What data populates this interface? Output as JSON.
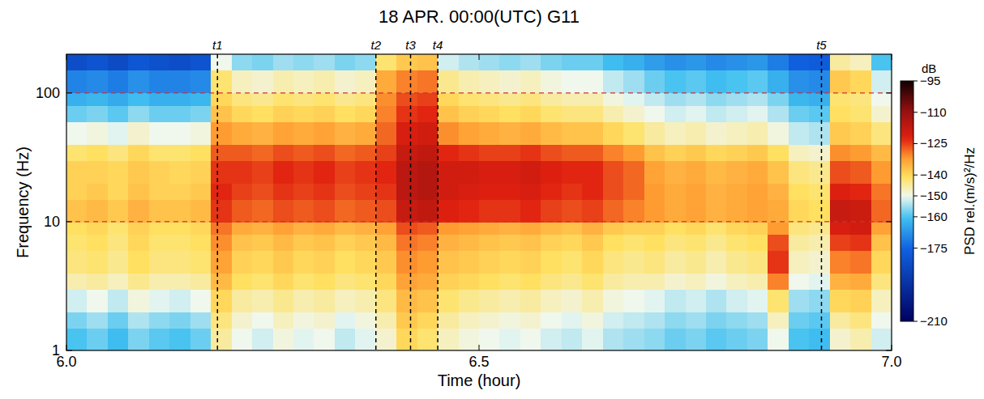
{
  "chart_data": {
    "type": "heatmap",
    "title": "18 APR. 00:00(UTC) G11",
    "x_label": "Time (hour)",
    "y_label": "Frequency (Hz)",
    "xlim": [
      6.0,
      7.0
    ],
    "xticks": [
      {
        "value": 6.0,
        "label": "6.0"
      },
      {
        "value": 6.5,
        "label": "6.5"
      },
      {
        "value": 7.0,
        "label": "7.0"
      }
    ],
    "ylim": [
      1,
      200
    ],
    "yticks": [
      1,
      10,
      100
    ],
    "log": "y",
    "grid": false,
    "markers": [
      {
        "label": "t1",
        "x": 6.183
      },
      {
        "label": "t2",
        "x": 6.375
      },
      {
        "label": "t3",
        "x": 6.417
      },
      {
        "label": "t4",
        "x": 6.45
      },
      {
        "label": "t5",
        "x": 6.915
      }
    ],
    "reference_lines": [
      10,
      100
    ],
    "colorbar": {
      "unit": "dB",
      "label": "PSD rel.(m/s)²/Hz",
      "range": [
        -210,
        -95
      ],
      "ticks": [
        -95,
        -110,
        -125,
        -140,
        -150,
        -160,
        -175,
        -210
      ]
    },
    "cells": {
      "x_edges": [
        6.0,
        6.025,
        6.05,
        6.075,
        6.1,
        6.125,
        6.15,
        6.175,
        6.2,
        6.225,
        6.25,
        6.275,
        6.3,
        6.325,
        6.35,
        6.375,
        6.4,
        6.425,
        6.45,
        6.475,
        6.5,
        6.525,
        6.55,
        6.575,
        6.6,
        6.625,
        6.65,
        6.675,
        6.7,
        6.725,
        6.75,
        6.775,
        6.8,
        6.825,
        6.85,
        6.875,
        6.9,
        6.925,
        6.95,
        6.975,
        7.0
      ],
      "y_edges": [
        1,
        1.5,
        2,
        3,
        4,
        6,
        8,
        10,
        15,
        20,
        30,
        40,
        60,
        80,
        100,
        150,
        200
      ],
      "values": [
        [
          -160,
          -158,
          -161,
          -157,
          -159,
          -160,
          -158,
          -145,
          -150,
          -152,
          -149,
          -151,
          -150,
          -153,
          -151,
          -148,
          -140,
          -142,
          -147,
          -149,
          -150,
          -151,
          -150,
          -152,
          -153,
          -151,
          -154,
          -155,
          -156,
          -158,
          -157,
          -159,
          -158,
          -157,
          -150,
          -160,
          -161,
          -148,
          -146,
          -152
        ],
        [
          -157,
          -155,
          -158,
          -154,
          -156,
          -157,
          -155,
          -143,
          -148,
          -150,
          -147,
          -149,
          -148,
          -151,
          -149,
          -146,
          -138,
          -140,
          -145,
          -147,
          -148,
          -149,
          -148,
          -150,
          -151,
          -149,
          -152,
          -153,
          -154,
          -156,
          -155,
          -157,
          -156,
          -155,
          -147,
          -158,
          -159,
          -145,
          -143,
          -150
        ],
        [
          -152,
          -150,
          -153,
          -149,
          -151,
          -152,
          -150,
          -140,
          -145,
          -146,
          -144,
          -146,
          -145,
          -147,
          -146,
          -143,
          -136,
          -137,
          -142,
          -144,
          -145,
          -146,
          -145,
          -147,
          -148,
          -146,
          -149,
          -150,
          -151,
          -153,
          -152,
          -154,
          -152,
          -151,
          -142,
          -155,
          -156,
          -140,
          -139,
          -147
        ],
        [
          -146,
          -145,
          -147,
          -144,
          -146,
          -146,
          -145,
          -136,
          -141,
          -142,
          -140,
          -142,
          -141,
          -143,
          -142,
          -140,
          -133,
          -134,
          -139,
          -140,
          -141,
          -142,
          -141,
          -143,
          -144,
          -142,
          -145,
          -146,
          -146,
          -148,
          -147,
          -149,
          -147,
          -146,
          -130,
          -150,
          -151,
          -135,
          -134,
          -143
        ],
        [
          -143,
          -142,
          -144,
          -141,
          -143,
          -143,
          -142,
          -133,
          -139,
          -140,
          -138,
          -140,
          -139,
          -141,
          -140,
          -138,
          -131,
          -132,
          -137,
          -138,
          -139,
          -140,
          -139,
          -141,
          -142,
          -140,
          -143,
          -144,
          -143,
          -145,
          -144,
          -146,
          -144,
          -143,
          -124,
          -147,
          -148,
          -130,
          -129,
          -140
        ],
        [
          -142,
          -141,
          -143,
          -140,
          -142,
          -142,
          -141,
          -131,
          -137,
          -138,
          -136,
          -138,
          -137,
          -139,
          -138,
          -136,
          -129,
          -130,
          -135,
          -136,
          -137,
          -138,
          -137,
          -139,
          -140,
          -138,
          -141,
          -142,
          -141,
          -143,
          -142,
          -144,
          -142,
          -141,
          -126,
          -145,
          -146,
          -125,
          -124,
          -137
        ],
        [
          -141,
          -140,
          -142,
          -139,
          -141,
          -141,
          -140,
          -129,
          -134,
          -135,
          -133,
          -135,
          -134,
          -136,
          -135,
          -133,
          -126,
          -127,
          -132,
          -133,
          -134,
          -135,
          -134,
          -136,
          -137,
          -135,
          -138,
          -139,
          -139,
          -141,
          -140,
          -142,
          -140,
          -139,
          -132,
          -143,
          -144,
          -121,
          -120,
          -133
        ],
        [
          -137,
          -136,
          -138,
          -135,
          -137,
          -137,
          -136,
          -124,
          -127,
          -128,
          -126,
          -127,
          -126,
          -128,
          -127,
          -126,
          -118,
          -117,
          -122,
          -123,
          -124,
          -124,
          -123,
          -125,
          -126,
          -125,
          -128,
          -130,
          -132,
          -134,
          -133,
          -135,
          -134,
          -133,
          -134,
          -140,
          -141,
          -118,
          -119,
          -128
        ],
        [
          -139,
          -138,
          -140,
          -137,
          -139,
          -139,
          -138,
          -123,
          -125,
          -126,
          -124,
          -125,
          -124,
          -126,
          -125,
          -124,
          -116,
          -115,
          -120,
          -121,
          -122,
          -122,
          -121,
          -123,
          -124,
          -123,
          -126,
          -128,
          -132,
          -134,
          -133,
          -135,
          -134,
          -133,
          -135,
          -141,
          -142,
          -122,
          -123,
          -129
        ],
        [
          -139,
          -139,
          -140,
          -138,
          -139,
          -140,
          -139,
          -124,
          -124,
          -125,
          -123,
          -124,
          -123,
          -125,
          -124,
          -123,
          -116,
          -115,
          -120,
          -120,
          -121,
          -121,
          -120,
          -122,
          -123,
          -123,
          -126,
          -128,
          -133,
          -135,
          -134,
          -136,
          -135,
          -134,
          -137,
          -143,
          -144,
          -126,
          -127,
          -132
        ],
        [
          -142,
          -141,
          -143,
          -140,
          -142,
          -142,
          -141,
          -127,
          -127,
          -128,
          -126,
          -127,
          -126,
          -128,
          -127,
          -125,
          -118,
          -117,
          -123,
          -124,
          -125,
          -125,
          -124,
          -126,
          -127,
          -127,
          -130,
          -132,
          -137,
          -139,
          -138,
          -140,
          -139,
          -138,
          -141,
          -147,
          -148,
          -131,
          -132,
          -136
        ],
        [
          -150,
          -149,
          -151,
          -148,
          -150,
          -150,
          -149,
          -132,
          -134,
          -135,
          -133,
          -134,
          -133,
          -135,
          -134,
          -128,
          -121,
          -120,
          -131,
          -133,
          -134,
          -135,
          -134,
          -136,
          -137,
          -137,
          -140,
          -142,
          -145,
          -147,
          -146,
          -148,
          -147,
          -146,
          -149,
          -153,
          -154,
          -138,
          -139,
          -143
        ],
        [
          -158,
          -157,
          -159,
          -156,
          -158,
          -158,
          -157,
          -137,
          -140,
          -141,
          -139,
          -140,
          -139,
          -141,
          -140,
          -130,
          -124,
          -123,
          -137,
          -139,
          -140,
          -141,
          -140,
          -142,
          -143,
          -143,
          -146,
          -148,
          -150,
          -152,
          -151,
          -153,
          -152,
          -151,
          -154,
          -158,
          -159,
          -141,
          -142,
          -148
        ],
        [
          -163,
          -162,
          -164,
          -161,
          -163,
          -163,
          -162,
          -140,
          -143,
          -144,
          -142,
          -143,
          -142,
          -144,
          -143,
          -131,
          -126,
          -125,
          -140,
          -142,
          -143,
          -144,
          -143,
          -145,
          -146,
          -146,
          -149,
          -151,
          -153,
          -155,
          -154,
          -156,
          -155,
          -154,
          -157,
          -162,
          -163,
          -142,
          -143,
          -150
        ],
        [
          -170,
          -169,
          -171,
          -168,
          -170,
          -170,
          -169,
          -142,
          -147,
          -148,
          -146,
          -147,
          -146,
          -148,
          -147,
          -134,
          -130,
          -129,
          -144,
          -146,
          -147,
          -148,
          -147,
          -149,
          -150,
          -150,
          -153,
          -155,
          -158,
          -160,
          -159,
          -161,
          -160,
          -159,
          -163,
          -168,
          -169,
          -138,
          -140,
          -152
        ],
        [
          -182,
          -180,
          -183,
          -179,
          -181,
          -182,
          -180,
          -150,
          -156,
          -157,
          -155,
          -156,
          -155,
          -157,
          -156,
          -142,
          -138,
          -137,
          -152,
          -154,
          -155,
          -156,
          -155,
          -157,
          -158,
          -158,
          -161,
          -163,
          -166,
          -168,
          -167,
          -169,
          -168,
          -167,
          -171,
          -176,
          -177,
          -145,
          -147,
          -160
        ]
      ]
    }
  }
}
